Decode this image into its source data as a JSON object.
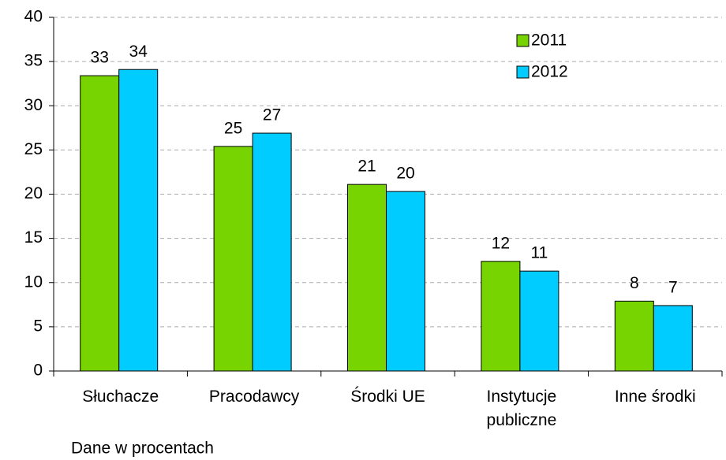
{
  "chart_data": {
    "type": "bar",
    "categories": [
      "Słuchacze",
      "Pracodawcy",
      "Środki UE",
      "Instytucje publiczne",
      "Inne środki"
    ],
    "series": [
      {
        "name": "2011",
        "color": "#77d400",
        "values": [
          33.4,
          25.4,
          21.1,
          12.4,
          7.9
        ],
        "value_labels": [
          "33",
          "25",
          "21",
          "12",
          "8"
        ]
      },
      {
        "name": "2012",
        "color": "#00ccff",
        "values": [
          34.1,
          26.9,
          20.3,
          11.3,
          7.4
        ],
        "value_labels": [
          "34",
          "27",
          "20",
          "11",
          "7"
        ]
      }
    ],
    "ylim": [
      0,
      40
    ],
    "yticks": [
      0,
      5,
      10,
      15,
      20,
      25,
      30,
      35,
      40
    ],
    "grid": true,
    "legend": "top-right",
    "note": "Dane w procentach"
  }
}
